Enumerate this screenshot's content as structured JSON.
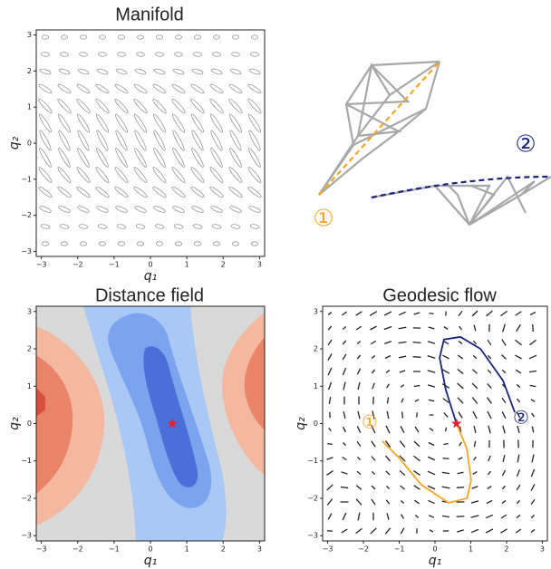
{
  "chart_data": [
    {
      "type": "ellipse-field",
      "title": "Manifold",
      "xlabel": "q₁",
      "ylabel": "q₂",
      "xlim": [
        -3.14,
        3.14
      ],
      "ylim": [
        -3.14,
        3.14
      ],
      "xticks": [
        {
          "value": -3,
          "label": "−3"
        },
        {
          "value": -2,
          "label": "−2"
        },
        {
          "value": -1,
          "label": "−1"
        },
        0,
        1,
        2,
        3
      ],
      "yticks": [
        {
          "value": -3,
          "label": "−3"
        },
        {
          "value": -2,
          "label": "−2"
        },
        {
          "value": -1,
          "label": "−1"
        },
        0,
        1,
        2,
        3
      ]
    },
    {
      "type": "contour",
      "title": "Distance field",
      "xlabel": "q₁",
      "ylabel": "q₂",
      "xlim": [
        -3.14,
        3.14
      ],
      "ylim": [
        -3.14,
        3.14
      ],
      "xticks": [
        {
          "value": -3,
          "label": "−3"
        },
        {
          "value": -2,
          "label": "−2"
        },
        {
          "value": -1,
          "label": "−1"
        },
        0,
        1,
        2,
        3
      ],
      "yticks": [
        {
          "value": -3,
          "label": "−3"
        },
        {
          "value": -2,
          "label": "−2"
        },
        {
          "value": -1,
          "label": "−1"
        },
        0,
        1,
        2,
        3
      ],
      "star": {
        "x": 0.6,
        "y": 0,
        "color": "#e8202a"
      }
    },
    {
      "type": "quiver",
      "title": "Geodesic flow",
      "xlabel": "q₁",
      "ylabel": "q₂",
      "xlim": [
        -3.14,
        3.14
      ],
      "ylim": [
        -3.14,
        3.14
      ],
      "xticks": [
        {
          "value": -3,
          "label": "−3"
        },
        {
          "value": -2,
          "label": "−2"
        },
        {
          "value": -1,
          "label": "−1"
        },
        0,
        1,
        2,
        3
      ],
      "yticks": [
        {
          "value": -3,
          "label": "−3"
        },
        {
          "value": -2,
          "label": "−2"
        },
        {
          "value": -1,
          "label": "−1"
        },
        0,
        1,
        2,
        3
      ],
      "series": [
        {
          "color": "#f5a623",
          "x": [
            0.6,
            0.89,
            1.01,
            0.89,
            0.38,
            -0.38,
            -1.01,
            -1.47
          ],
          "y": [
            0,
            -0.67,
            -1.52,
            -2.0,
            -2.12,
            -1.64,
            -0.91,
            -0.47
          ]
        },
        {
          "color": "#1a237e",
          "x": [
            0.6,
            0.3,
            0.13,
            0.25,
            0.71,
            1.27,
            1.9,
            2.23
          ],
          "y": [
            0,
            0.91,
            1.76,
            2.25,
            2.32,
            2.0,
            1.15,
            0.3
          ]
        }
      ],
      "annotations": [
        "①",
        "②"
      ],
      "star": {
        "x": 0.6,
        "y": 0,
        "color": "#e8202a"
      }
    }
  ],
  "diagram": {
    "labels": [
      "①",
      "②"
    ]
  }
}
